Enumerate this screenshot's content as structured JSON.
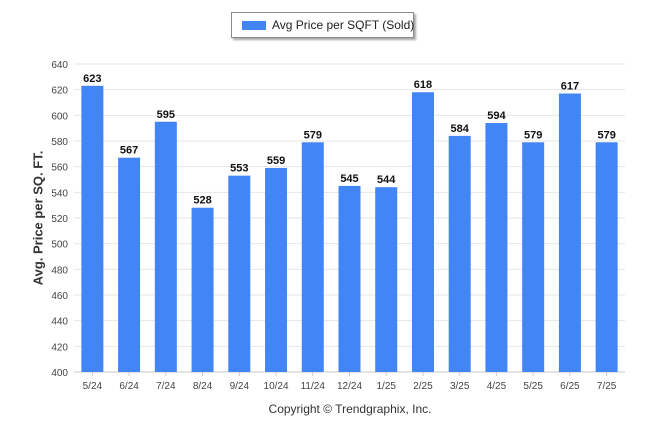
{
  "chart_data": {
    "type": "bar",
    "categories": [
      "5/24",
      "6/24",
      "7/24",
      "8/24",
      "9/24",
      "10/24",
      "11/24",
      "12/24",
      "1/25",
      "2/25",
      "3/25",
      "4/25",
      "5/25",
      "6/25",
      "7/25"
    ],
    "series": [
      {
        "name": "Avg Price per SQFT (Sold)",
        "values": [
          623,
          567,
          595,
          528,
          553,
          559,
          579,
          545,
          544,
          618,
          584,
          594,
          579,
          617,
          579
        ]
      }
    ],
    "title": "",
    "xlabel": "",
    "ylabel": "Avg. Price per SQ. FT.",
    "ylim": [
      400,
      640
    ],
    "yticks": [
      400,
      420,
      440,
      460,
      480,
      500,
      520,
      540,
      560,
      580,
      600,
      620,
      640
    ],
    "grid": true,
    "legend_position": "top",
    "bar_color": "#4285f4",
    "show_data_labels": true
  },
  "footer": {
    "credit": "Copyright © Trendgraphix, Inc."
  }
}
